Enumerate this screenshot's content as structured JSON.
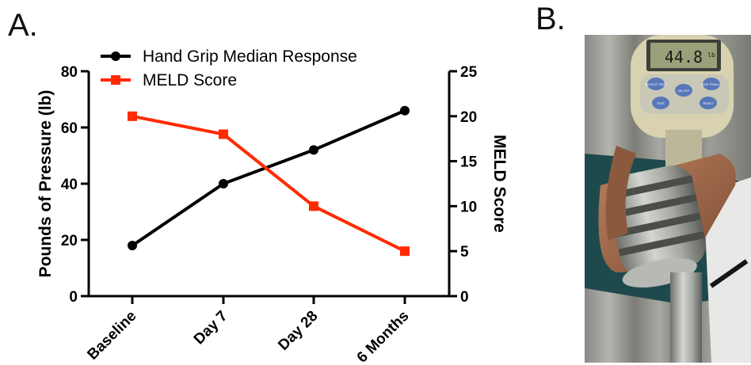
{
  "panels": {
    "a": "A.",
    "b": "B."
  },
  "chart_data": {
    "type": "line",
    "categories": [
      "Baseline",
      "Day 7",
      "Day 28",
      "6 Months"
    ],
    "series": [
      {
        "name": "Hand Grip Median Response",
        "axis": "left",
        "color": "#000000",
        "marker": "circle",
        "values": [
          18,
          40,
          52,
          66
        ]
      },
      {
        "name": "MELD Score",
        "axis": "right",
        "color": "#ff2a00",
        "marker": "square",
        "values": [
          20,
          18,
          10,
          5
        ]
      }
    ],
    "ylabel": "Pounds of Pressure (lb)",
    "ylabel_right": "MELD Score",
    "ylim": [
      0,
      80
    ],
    "yticks": [
      0,
      20,
      40,
      60,
      80
    ],
    "ylim_right": [
      0,
      25
    ],
    "yticks_right": [
      0,
      5,
      10,
      15,
      20,
      25
    ],
    "legend": "top-left",
    "grid": false
  },
  "photo": {
    "display_text": "44.8",
    "unit": "lb",
    "buttons": [
      "SELECT TEST",
      "ON OFF",
      "BOP FINALS",
      "TEST",
      "RESET"
    ],
    "colors": {
      "device": "#d8d2b0",
      "panel": "#c9c7b6",
      "display": "#9aa17a",
      "button": "#5777b8",
      "handle": "#a8aaa6"
    }
  }
}
